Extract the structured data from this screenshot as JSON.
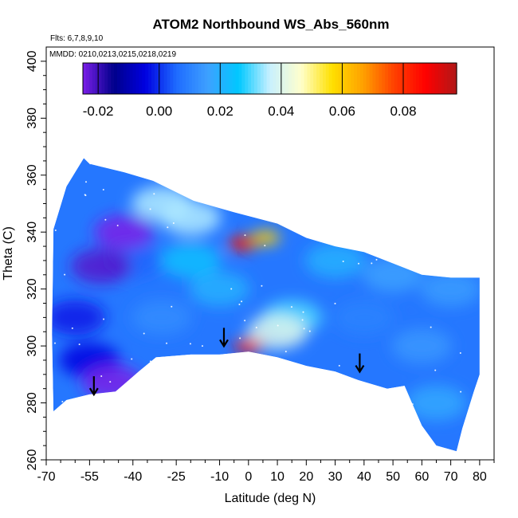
{
  "chart_data": {
    "type": "heatmap",
    "title": "ATOM2 Northbound WS_Abs_560nm",
    "annotations": {
      "flights": "Flts: 6,7,8,9,10",
      "dates": "MMDD: 0210,0213,0215,0218,0219"
    },
    "xlabel": "Latitude (deg N)",
    "ylabel": "Theta (C)",
    "xlim": [
      -70,
      85
    ],
    "ylim": [
      260,
      405
    ],
    "xticks": [
      -70,
      -55,
      -40,
      -25,
      -10,
      0,
      10,
      20,
      30,
      40,
      50,
      60,
      70,
      80
    ],
    "xtick_labels": [
      "-70",
      "-55",
      "-40",
      "-25",
      "-10",
      "0",
      "10",
      "20",
      "30",
      "40",
      "50",
      "60",
      "70",
      "80"
    ],
    "yticks": [
      260,
      280,
      300,
      320,
      340,
      360,
      380,
      400
    ],
    "ytick_labels": [
      "260",
      "280",
      "300",
      "320",
      "340",
      "360",
      "380",
      "400"
    ],
    "colorbar": {
      "range": [
        -0.025,
        0.0975
      ],
      "ticks": [
        -0.02,
        0.0,
        0.02,
        0.04,
        0.06,
        0.08
      ],
      "tick_labels": [
        "-0.02",
        "0.00",
        "0.02",
        "0.04",
        "0.06",
        "0.08"
      ],
      "colors": [
        "#7a1ee8",
        "#00008b",
        "#0000e0",
        "#1e6bff",
        "#3ea0ff",
        "#00c8ff",
        "#c8f0ff",
        "#ffffcc",
        "#ffe000",
        "#ffa000",
        "#ff4000",
        "#ff0000",
        "#b01818"
      ]
    },
    "domain_outline": [
      [
        -67.5,
        277
      ],
      [
        -68,
        304
      ],
      [
        -67.5,
        341
      ],
      [
        -63,
        356
      ],
      [
        -57,
        366
      ],
      [
        -55,
        364
      ],
      [
        -43,
        361
      ],
      [
        -33,
        358
      ],
      [
        -19,
        351
      ],
      [
        -5,
        347
      ],
      [
        10,
        343
      ],
      [
        20,
        338
      ],
      [
        30,
        335
      ],
      [
        40,
        333
      ],
      [
        50,
        329
      ],
      [
        60,
        325
      ],
      [
        70,
        324
      ],
      [
        80,
        324
      ],
      [
        80,
        290
      ],
      [
        78,
        284
      ],
      [
        74,
        271
      ],
      [
        72,
        263
      ],
      [
        65,
        265
      ],
      [
        60,
        272
      ],
      [
        54,
        286
      ],
      [
        48,
        285
      ],
      [
        38,
        288
      ],
      [
        30,
        291
      ],
      [
        20,
        293
      ],
      [
        10,
        296
      ],
      [
        0,
        298
      ],
      [
        -10,
        297
      ],
      [
        -20,
        297
      ],
      [
        -32,
        296
      ],
      [
        -38,
        291
      ],
      [
        -46,
        284
      ],
      [
        -55,
        283
      ],
      [
        -63,
        281
      ]
    ],
    "features": [
      {
        "lat": -2,
        "theta": 336,
        "value": 0.085
      },
      {
        "lat": 0,
        "theta": 300,
        "value": 0.085
      },
      {
        "lat": 6,
        "theta": 338,
        "value": 0.06
      },
      {
        "lat": -43,
        "theta": 340,
        "value": -0.025
      },
      {
        "lat": -51,
        "theta": 328,
        "value": -0.022
      },
      {
        "lat": -47,
        "theta": 287,
        "value": -0.025
      },
      {
        "lat": -30,
        "theta": 350,
        "value": 0.035
      },
      {
        "lat": -20,
        "theta": 345,
        "value": 0.035
      },
      {
        "lat": 10,
        "theta": 305,
        "value": 0.04
      },
      {
        "lat": 15,
        "theta": 310,
        "value": 0.03
      },
      {
        "lat": -60,
        "theta": 310,
        "value": -0.002
      },
      {
        "lat": -55,
        "theta": 295,
        "value": -0.004
      },
      {
        "lat": 40,
        "theta": 310,
        "value": 0.01
      },
      {
        "lat": 60,
        "theta": 300,
        "value": 0.014
      },
      {
        "lat": 70,
        "theta": 320,
        "value": 0.015
      },
      {
        "lat": 65,
        "theta": 280,
        "value": 0.018
      },
      {
        "lat": -30,
        "theta": 310,
        "value": 0.012
      },
      {
        "lat": -10,
        "theta": 320,
        "value": 0.02
      },
      {
        "lat": 30,
        "theta": 330,
        "value": 0.02
      },
      {
        "lat": 50,
        "theta": 325,
        "value": 0.016
      },
      {
        "lat": -40,
        "theta": 330,
        "value": 0.005
      },
      {
        "lat": -20,
        "theta": 330,
        "value": 0.024
      }
    ],
    "arrows": [
      {
        "lat": -53.5,
        "theta": 286
      },
      {
        "lat": -8.5,
        "theta": 303
      },
      {
        "lat": 38.5,
        "theta": 294
      }
    ]
  }
}
